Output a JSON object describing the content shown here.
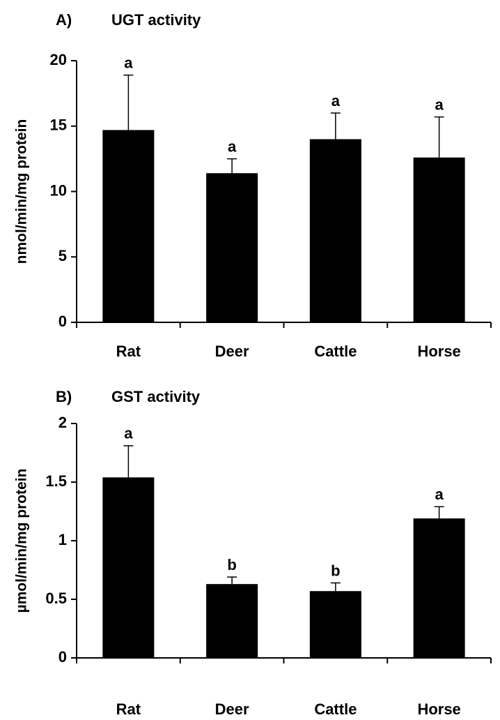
{
  "chart_data": [
    {
      "type": "bar",
      "panel_label": "A)",
      "title": "UGT activity",
      "y_label": "nmol/min/mg protein",
      "categories": [
        "Rat",
        "Deer",
        "Cattle",
        "Horse"
      ],
      "values": [
        14.7,
        11.4,
        14.0,
        12.6
      ],
      "errors": [
        4.2,
        1.1,
        2.0,
        3.1
      ],
      "annotations": [
        "a",
        "a",
        "a",
        "a"
      ],
      "color": "#000000",
      "ylim": [
        0,
        20
      ],
      "yticks": [
        0,
        5,
        10,
        15,
        20
      ]
    },
    {
      "type": "bar",
      "panel_label": "B)",
      "title": "GST activity",
      "y_label": "µmol/min/mg protein",
      "categories": [
        "Rat",
        "Deer",
        "Cattle",
        "Horse"
      ],
      "values": [
        1.54,
        0.63,
        0.57,
        1.19
      ],
      "errors": [
        0.27,
        0.06,
        0.07,
        0.1
      ],
      "annotations": [
        "a",
        "b",
        "b",
        "a"
      ],
      "color": "#000000",
      "ylim": [
        0,
        2
      ],
      "yticks": [
        0,
        0.5,
        1,
        1.5,
        2
      ]
    }
  ]
}
